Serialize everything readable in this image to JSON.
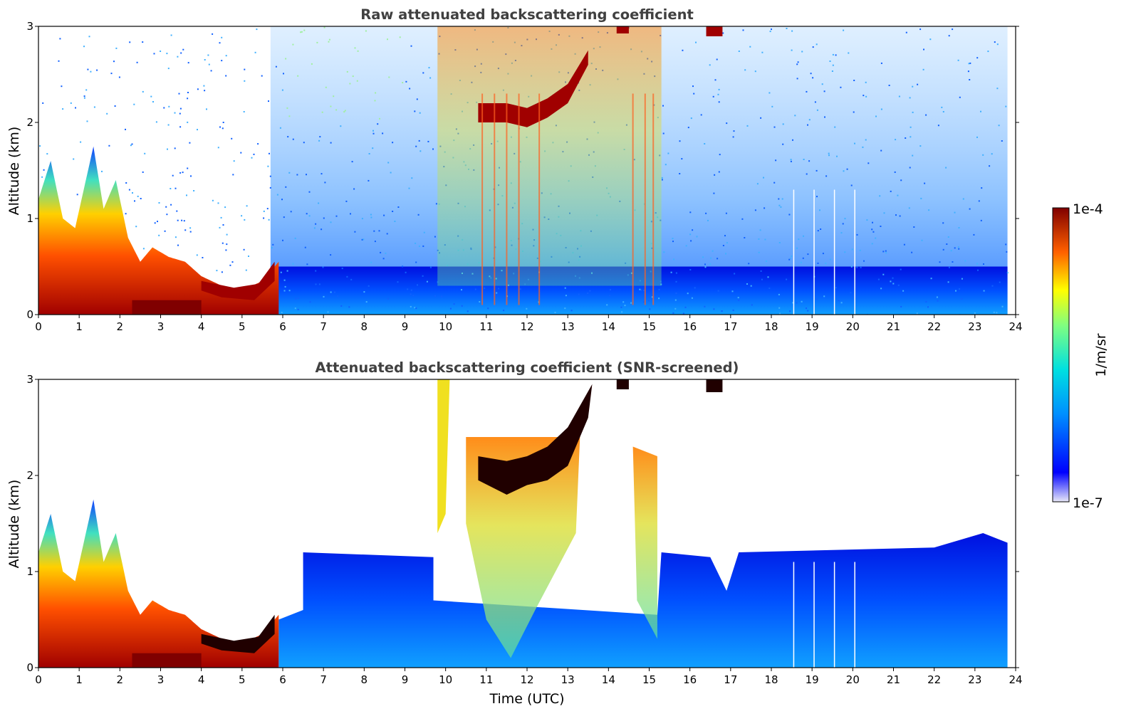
{
  "chart_data": [
    {
      "type": "heatmap",
      "title": "Raw attenuated backscattering coefficient",
      "xlabel": "",
      "ylabel": "Altitude (km)",
      "xlim": [
        0,
        24
      ],
      "ylim": [
        0,
        3
      ],
      "x_ticks": [
        "0",
        "1",
        "2",
        "3",
        "4",
        "5",
        "6",
        "7",
        "8",
        "9",
        "10",
        "11",
        "12",
        "13",
        "14",
        "15",
        "16",
        "17",
        "18",
        "19",
        "20",
        "21",
        "22",
        "23",
        "24"
      ],
      "y_ticks": [
        "0",
        "1",
        "2",
        "3"
      ],
      "data_extent_hours": [
        0,
        23.8
      ],
      "colorscale": "jet",
      "scale": "log",
      "features": [
        {
          "name": "boundary layer",
          "time": [
            0,
            6
          ],
          "top_km": [
            1.2,
            0.2
          ]
        },
        {
          "name": "cloud layer",
          "time": [
            10.5,
            13.5
          ],
          "altitude_km": [
            2.0,
            2.7
          ]
        },
        {
          "name": "high cloud",
          "time": [
            14.2,
            16.8
          ],
          "altitude_km": [
            2.9,
            3.0
          ]
        }
      ]
    },
    {
      "type": "heatmap",
      "title": "Attenuated backscattering coefficient (SNR-screened)",
      "xlabel": "Time (UTC)",
      "ylabel": "Altitude (km)",
      "xlim": [
        0,
        24
      ],
      "ylim": [
        0,
        3
      ],
      "x_ticks": [
        "0",
        "1",
        "2",
        "3",
        "4",
        "5",
        "6",
        "7",
        "8",
        "9",
        "10",
        "11",
        "12",
        "13",
        "14",
        "15",
        "16",
        "17",
        "18",
        "19",
        "20",
        "21",
        "22",
        "23",
        "24"
      ],
      "y_ticks": [
        "0",
        "1",
        "2",
        "3"
      ],
      "data_extent_hours": [
        0,
        23.8
      ],
      "colorscale": "jet",
      "scale": "log",
      "features": [
        {
          "name": "screened signal top",
          "time": [
            6.5,
            23.8
          ],
          "top_km": [
            1.1,
            1.3
          ]
        }
      ]
    }
  ],
  "colorbar": {
    "label": "1/m/sr",
    "max_label": "1e-4",
    "min_label": "1e-7",
    "range": [
      1e-07,
      0.0001
    ]
  }
}
